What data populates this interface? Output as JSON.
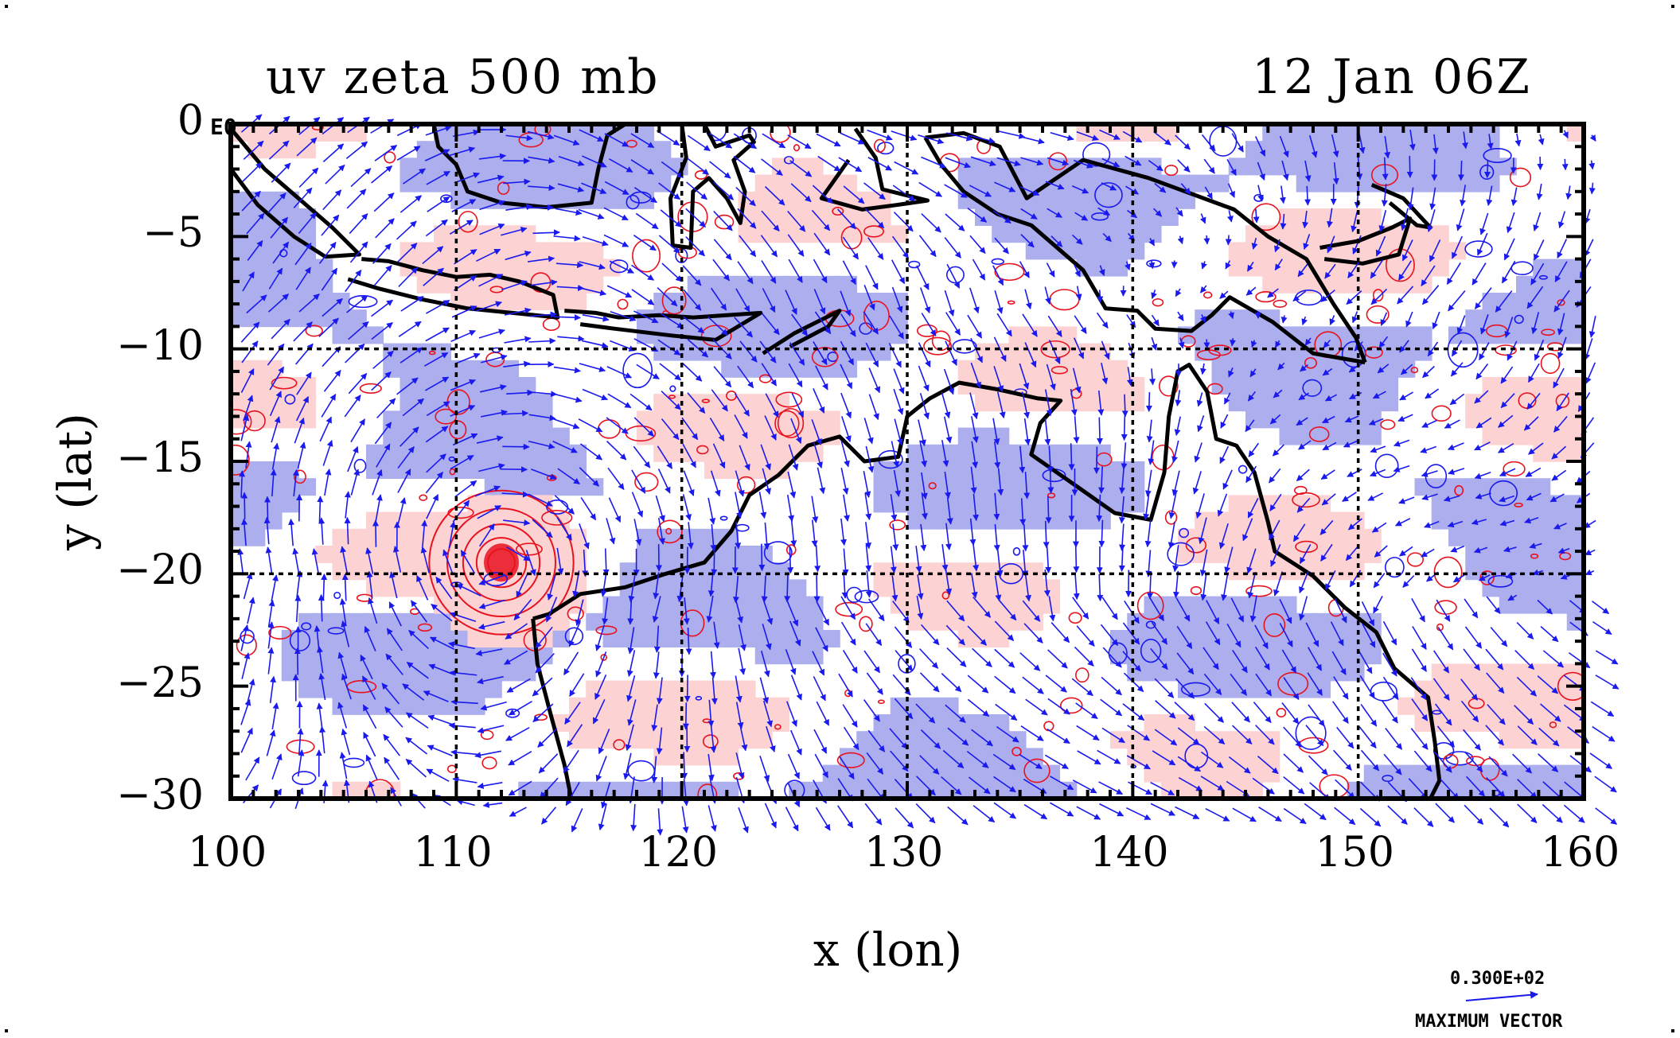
{
  "title": {
    "left": "uv zeta 500 mb",
    "right": "12 Jan 06Z"
  },
  "axes": {
    "xlabel": "x (lon)",
    "ylabel": "y (lat)",
    "x_ticks": [
      "100",
      "110",
      "120",
      "130",
      "140",
      "150",
      "160"
    ],
    "y_ticks": [
      "0",
      "−5",
      "−10",
      "−15",
      "−20",
      "−25",
      "−30"
    ],
    "xlim": [
      100,
      160
    ],
    "ylim": [
      -30,
      0
    ],
    "exponent_label": "E0"
  },
  "legend": {
    "value": "0.300E+02",
    "caption": "MAXIMUM VECTOR"
  },
  "colors": {
    "positive_vorticity_fill": "#fcd2d2",
    "positive_vorticity_contour": "#e8121e",
    "negative_vorticity_fill": "#acaeee",
    "wind_vectors": "#1a1aee",
    "coastline": "#000000",
    "gridlines": "#000000"
  },
  "chart_data": {
    "type": "vector-field-map",
    "title": "uv zeta 500 mb",
    "subtitle": "12 Jan 06Z",
    "xlabel": "x (lon)",
    "ylabel": "y (lat)",
    "xlim": [
      100,
      160
    ],
    "ylim": [
      -30,
      0
    ],
    "grid": true,
    "gridlines_x": [
      110,
      120,
      130,
      140,
      150
    ],
    "gridlines_y": [
      -10,
      -20
    ],
    "cyclone_center": [
      112,
      -19.5
    ],
    "reference_vector": "0.300E+02",
    "coastlines": [
      {
        "name": "sumatra",
        "points": [
          [
            100,
            -0.2
          ],
          [
            101.5,
            -2
          ],
          [
            103,
            -3.3
          ],
          [
            104.5,
            -4.6
          ],
          [
            105.7,
            -5.8
          ],
          [
            104.2,
            -5.9
          ],
          [
            102.8,
            -5
          ],
          [
            101.2,
            -3.6
          ],
          [
            100,
            -2
          ]
        ]
      },
      {
        "name": "borneo-west",
        "points": [
          [
            109,
            0
          ],
          [
            109.2,
            -1
          ],
          [
            110,
            -1.8
          ],
          [
            110.5,
            -3
          ],
          [
            112,
            -3.5
          ],
          [
            114,
            -3.7
          ],
          [
            116,
            -3.5
          ],
          [
            116.3,
            -2
          ],
          [
            116.7,
            -0.5
          ],
          [
            117.5,
            0
          ]
        ]
      },
      {
        "name": "java",
        "points": [
          [
            105.8,
            -6
          ],
          [
            107,
            -6.1
          ],
          [
            108.5,
            -6.5
          ],
          [
            110,
            -6.8
          ],
          [
            111.5,
            -6.7
          ],
          [
            112.8,
            -7
          ],
          [
            114.3,
            -7.6
          ],
          [
            114.5,
            -8.6
          ],
          [
            112.5,
            -8.4
          ],
          [
            110.5,
            -8.2
          ],
          [
            108.5,
            -7.8
          ],
          [
            106.5,
            -7.3
          ],
          [
            105.2,
            -6.9
          ]
        ]
      },
      {
        "name": "lesser-sunda",
        "points": [
          [
            114.8,
            -8.3
          ],
          [
            116.2,
            -8.4
          ],
          [
            117.2,
            -8.6
          ],
          [
            119,
            -8.5
          ],
          [
            120.5,
            -8.6
          ],
          [
            122,
            -8.5
          ],
          [
            123.5,
            -8.4
          ],
          [
            121.5,
            -9.6
          ],
          [
            119.5,
            -9.4
          ],
          [
            117,
            -9.1
          ],
          [
            115.5,
            -8.9
          ]
        ]
      },
      {
        "name": "timor",
        "points": [
          [
            123.6,
            -10.2
          ],
          [
            125,
            -9.3
          ],
          [
            127,
            -8.3
          ],
          [
            126.5,
            -9
          ],
          [
            124.8,
            -9.9
          ]
        ]
      },
      {
        "name": "sulawesi",
        "points": [
          [
            120,
            0
          ],
          [
            120.2,
            -1.5
          ],
          [
            119.5,
            -3.3
          ],
          [
            119.6,
            -5.4
          ],
          [
            120.4,
            -5.5
          ],
          [
            120.5,
            -3
          ],
          [
            121.2,
            -2.4
          ],
          [
            122,
            -3.3
          ],
          [
            122.6,
            -4.4
          ],
          [
            122.8,
            -3
          ],
          [
            122.3,
            -1.6
          ],
          [
            123.2,
            -0.8
          ],
          [
            123,
            -0.5
          ],
          [
            121.5,
            -1
          ],
          [
            121,
            0
          ]
        ]
      },
      {
        "name": "halmahera-seram",
        "points": [
          [
            127.7,
            -0.2
          ],
          [
            128.6,
            -1.5
          ],
          [
            128.9,
            -2.9
          ],
          [
            130.9,
            -3.4
          ],
          [
            129.5,
            -3.6
          ],
          [
            128,
            -3.8
          ],
          [
            126.2,
            -3.3
          ],
          [
            127.4,
            -1.6
          ]
        ]
      },
      {
        "name": "new-guinea-north",
        "points": [
          [
            130.8,
            -0.6
          ],
          [
            132.5,
            -0.4
          ],
          [
            134.1,
            -1
          ],
          [
            135.3,
            -3.3
          ],
          [
            137.8,
            -1.6
          ],
          [
            140.7,
            -2.4
          ],
          [
            144.5,
            -3.8
          ],
          [
            146,
            -5
          ],
          [
            147.7,
            -6
          ],
          [
            148.9,
            -8
          ],
          [
            149.9,
            -9.5
          ],
          [
            150.3,
            -10.6
          ]
        ]
      },
      {
        "name": "new-guinea-south",
        "points": [
          [
            150.3,
            -10.6
          ],
          [
            148,
            -10.2
          ],
          [
            146.2,
            -8.8
          ],
          [
            144.3,
            -7.7
          ],
          [
            143.5,
            -8.5
          ],
          [
            142.6,
            -9.2
          ],
          [
            141,
            -9.1
          ],
          [
            140.2,
            -8.3
          ],
          [
            138.8,
            -8.2
          ],
          [
            137.8,
            -6.5
          ],
          [
            135.5,
            -4.5
          ],
          [
            134,
            -4
          ],
          [
            132.5,
            -3
          ],
          [
            131.5,
            -1.8
          ],
          [
            130.8,
            -0.6
          ]
        ]
      },
      {
        "name": "new-britain",
        "points": [
          [
            148.3,
            -5.5
          ],
          [
            150,
            -5.2
          ],
          [
            151.5,
            -4.6
          ],
          [
            152.3,
            -4.2
          ],
          [
            151.8,
            -5.8
          ],
          [
            150.2,
            -6.2
          ],
          [
            148.5,
            -6
          ]
        ]
      },
      {
        "name": "new-ireland",
        "points": [
          [
            150.6,
            -2.7
          ],
          [
            152,
            -3.3
          ],
          [
            153.2,
            -4.6
          ],
          [
            152.6,
            -4.5
          ],
          [
            151.4,
            -3.5
          ]
        ]
      },
      {
        "name": "australia-nw",
        "points": [
          [
            113.4,
            -22
          ],
          [
            114.1,
            -21.8
          ],
          [
            115.5,
            -20.9
          ],
          [
            117.5,
            -20.6
          ],
          [
            119.3,
            -20
          ],
          [
            121,
            -19.5
          ],
          [
            122.2,
            -18.1
          ],
          [
            123,
            -16.5
          ],
          [
            124.3,
            -15.6
          ],
          [
            125.6,
            -14.3
          ],
          [
            127,
            -13.9
          ],
          [
            128.1,
            -15
          ],
          [
            129.6,
            -14.8
          ],
          [
            130,
            -13
          ],
          [
            131,
            -12.2
          ],
          [
            132.3,
            -11.5
          ],
          [
            134,
            -11.8
          ],
          [
            135.8,
            -12.2
          ],
          [
            136.8,
            -12.3
          ],
          [
            135.9,
            -13.3
          ],
          [
            135.5,
            -14.7
          ],
          [
            137.5,
            -16.1
          ],
          [
            139.2,
            -17.3
          ],
          [
            140.8,
            -17.6
          ],
          [
            141.4,
            -15.5
          ],
          [
            141.6,
            -13
          ],
          [
            142,
            -11
          ],
          [
            142.5,
            -10.7
          ],
          [
            143.3,
            -11.9
          ],
          [
            143.7,
            -14
          ],
          [
            144.6,
            -14.3
          ],
          [
            145.4,
            -15.5
          ],
          [
            146,
            -17.7
          ],
          [
            146.3,
            -19
          ],
          [
            148,
            -20.1
          ],
          [
            149.4,
            -21.5
          ],
          [
            150.8,
            -22.6
          ],
          [
            151.6,
            -24.2
          ],
          [
            153.1,
            -25.5
          ],
          [
            153.4,
            -27.5
          ],
          [
            153.6,
            -29.2
          ],
          [
            153.2,
            -30
          ]
        ]
      },
      {
        "name": "australia-west",
        "points": [
          [
            113.4,
            -22
          ],
          [
            113.6,
            -24
          ],
          [
            114.2,
            -26.3
          ],
          [
            114.8,
            -28.5
          ],
          [
            115.1,
            -30
          ]
        ]
      }
    ]
  }
}
